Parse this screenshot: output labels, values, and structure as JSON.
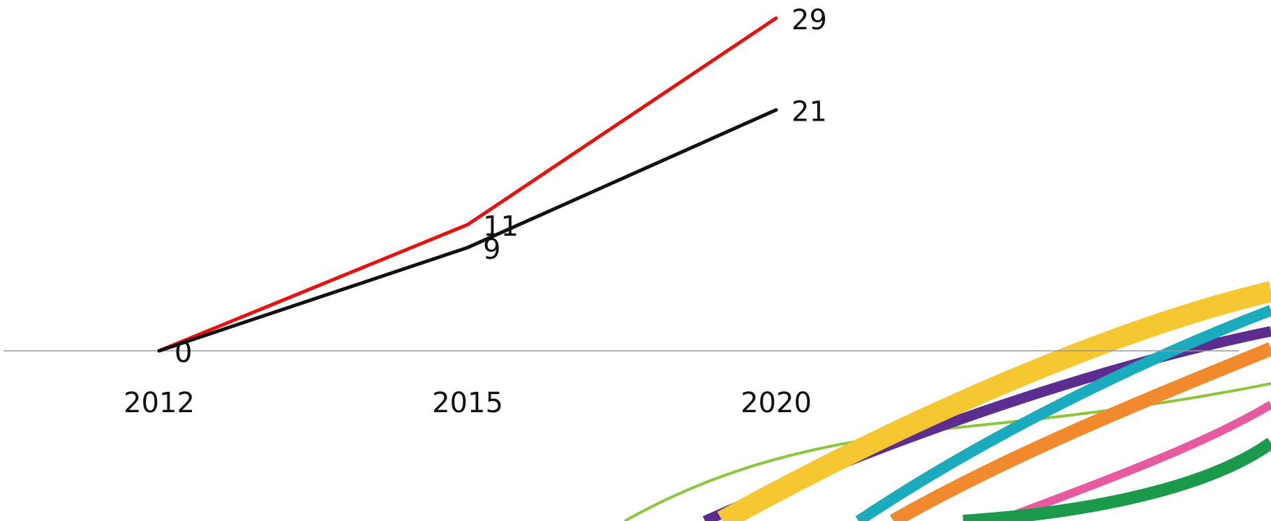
{
  "chart_data": {
    "type": "line",
    "categories": [
      "2012",
      "2015",
      "2020"
    ],
    "series": [
      {
        "color": "#e8120c",
        "values": [
          0,
          11,
          29
        ]
      },
      {
        "color": "#111111",
        "values": [
          0,
          9,
          21
        ]
      }
    ],
    "ylim": [
      0,
      30
    ]
  }
}
